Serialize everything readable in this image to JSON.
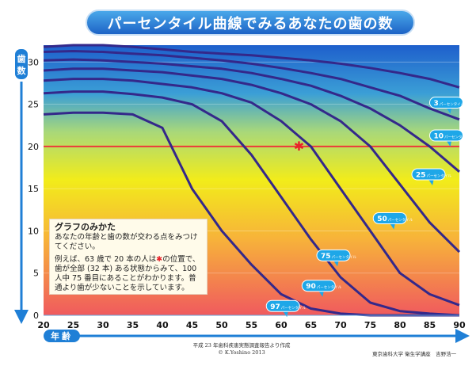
{
  "title": "パーセンタイル曲線でみるあなたの歯の数",
  "chart_data": {
    "type": "line",
    "title": "パーセンタイル曲線でみるあなたの歯の数",
    "ylabel": "歯数",
    "xlabel": "年齢",
    "xlim": [
      20,
      90
    ],
    "ylim": [
      0,
      32
    ],
    "x_ticks": [
      "20",
      "25",
      "30",
      "35",
      "40",
      "45",
      "50",
      "55",
      "60",
      "65",
      "70",
      "75",
      "80",
      "85",
      "90"
    ],
    "y_ticks": [
      "0",
      "5",
      "10",
      "15",
      "20",
      "25",
      "30"
    ],
    "reference_line": {
      "y": 20,
      "color": "#ec3a3a"
    },
    "marker": {
      "x": 63,
      "y": 20,
      "symbol": "✱",
      "color": "#e8232a"
    },
    "series": [
      {
        "x": [
          20,
          25,
          30,
          35,
          40,
          45,
          50,
          55,
          60,
          65,
          70,
          75,
          80,
          85,
          90
        ],
        "y": [
          31.8,
          32,
          32,
          31.8,
          31.5,
          31.2,
          31,
          30.8,
          30.5,
          30.2,
          29.8,
          29.3,
          28.7,
          28,
          27
        ]
      },
      {
        "x": [
          20,
          25,
          30,
          35,
          40,
          45,
          50,
          55,
          60,
          65,
          70,
          75,
          80,
          85,
          90
        ],
        "y": [
          31.2,
          31.3,
          31.2,
          31,
          30.8,
          30.5,
          30.2,
          29.8,
          29.3,
          28.7,
          28,
          27,
          26,
          24.5,
          23.2
        ]
      },
      {
        "x": [
          20,
          25,
          30,
          35,
          40,
          45,
          50,
          55,
          60,
          65,
          70,
          75,
          80,
          85,
          90
        ],
        "y": [
          30.2,
          30.3,
          30.2,
          30,
          29.8,
          29.5,
          29.2,
          28.7,
          28,
          27.2,
          26,
          24.5,
          22.5,
          20,
          17
        ]
      },
      {
        "x": [
          20,
          25,
          30,
          35,
          40,
          45,
          50,
          55,
          60,
          65,
          70,
          75,
          80,
          85,
          90
        ],
        "y": [
          29,
          29.2,
          29.2,
          29,
          28.8,
          28.4,
          28,
          27.3,
          26.3,
          25,
          23,
          20,
          15.5,
          11,
          7.5
        ]
      },
      {
        "x": [
          20,
          25,
          30,
          35,
          40,
          45,
          50,
          55,
          60,
          65,
          70,
          75,
          80,
          85,
          90
        ],
        "y": [
          27.8,
          28,
          28,
          27.8,
          27.4,
          27,
          26.3,
          25.2,
          23,
          20,
          15,
          10,
          5,
          2.5,
          1.2
        ]
      },
      {
        "x": [
          20,
          25,
          30,
          35,
          40,
          45,
          50,
          55,
          60,
          65,
          70,
          75,
          80,
          85,
          90
        ],
        "y": [
          26.3,
          26.5,
          26.5,
          26.2,
          25.8,
          25,
          23,
          19,
          14,
          9,
          4.5,
          1.5,
          0.5,
          0.2,
          0
        ]
      },
      {
        "x": [
          20,
          25,
          30,
          35,
          40,
          45,
          50,
          55,
          60,
          65,
          70,
          75,
          80,
          85,
          90
        ],
        "y": [
          23.8,
          24,
          24,
          23.8,
          22.2,
          15,
          10,
          6,
          2.5,
          0.8,
          0.2,
          0,
          0,
          0,
          0
        ]
      }
    ],
    "percentile_labels": [
      {
        "number": "3",
        "unit": "パーセンタイル",
        "x": 85,
        "y": 25.2
      },
      {
        "number": "10",
        "unit": "パーセンタイル",
        "x": 85,
        "y": 21.3
      },
      {
        "number": "25",
        "unit": "パーセンタイル",
        "x": 82,
        "y": 16.7
      },
      {
        "number": "50",
        "unit": "パーセンタイル",
        "x": 75.5,
        "y": 11.5
      },
      {
        "number": "75",
        "unit": "パーセンタイル",
        "x": 66,
        "y": 7.1
      },
      {
        "number": "90",
        "unit": "パーセンタイル",
        "x": 63.5,
        "y": 3.5
      },
      {
        "number": "97",
        "unit": "パーセンタイル",
        "x": 57.5,
        "y": 1.1
      }
    ],
    "background_gradient": [
      "#1e5fcc",
      "#3b9fd6",
      "#a8d87a",
      "#f2ec1a",
      "#f7b23a",
      "#f05a5e"
    ]
  },
  "guide": {
    "title": "グラフのみかた",
    "p1": "あなたの年齢と歯の数が交わる点をみつけてください。",
    "p2_a": "例えば、63 歳で 20 本の人は",
    "p2_star": "✱",
    "p2_b": "の位置で、歯が全部 (32 本) ある状態からみて、100 人中 75 番目にあることがわかります。普通より歯が少ないことを示しています。"
  },
  "footer": {
    "source": "平成 23 年歯科疾患実態調査報告より作成",
    "copyright": "© K.Yoshino 2013",
    "credit": "東京歯科大学 衛生学講座　吉野浩一"
  }
}
